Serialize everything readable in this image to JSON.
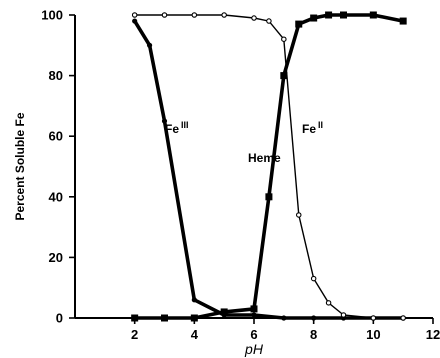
{
  "chart_data": {
    "type": "line",
    "title": "",
    "xlabel": "pH",
    "ylabel": "Percent Soluble Fe",
    "xlim": [
      0,
      12
    ],
    "ylim": [
      0,
      100
    ],
    "x_ticks": [
      2,
      4,
      6,
      8,
      10,
      12
    ],
    "x_tick_labels": [
      "2",
      "4",
      "6",
      "8",
      "10",
      "12"
    ],
    "y_ticks": [
      0,
      20,
      40,
      60,
      80,
      100
    ],
    "y_tick_labels": [
      "0",
      "20",
      "40",
      "60",
      "80",
      "100"
    ],
    "grid": false,
    "legend": "none",
    "series": [
      {
        "name": "FeIII",
        "label_main": "Fe",
        "label_sup": "III",
        "marker": "dot",
        "style": "thick",
        "x": [
          2,
          2.5,
          3,
          4,
          5,
          6,
          7,
          8,
          9,
          10,
          11
        ],
        "y": [
          98,
          90,
          65,
          6,
          1,
          1,
          0,
          0,
          0,
          0,
          0
        ]
      },
      {
        "name": "FeII",
        "label_main": "Fe",
        "label_sup": "II",
        "marker": "open-circle",
        "style": "thin",
        "x": [
          2,
          3,
          4,
          5,
          6,
          6.5,
          7,
          7.5,
          8,
          8.5,
          9,
          10,
          11
        ],
        "y": [
          100,
          100,
          100,
          100,
          99,
          98,
          92,
          34,
          13,
          5,
          1,
          0,
          0
        ]
      },
      {
        "name": "Heme",
        "label_main": "Heme",
        "label_sup": "",
        "marker": "square",
        "style": "thick",
        "x": [
          2,
          3,
          4,
          5,
          6,
          6.5,
          7,
          7.5,
          8,
          8.5,
          9,
          10,
          11
        ],
        "y": [
          0,
          0,
          0,
          2,
          3,
          40,
          80,
          97,
          99,
          100,
          100,
          100,
          98
        ]
      }
    ]
  }
}
